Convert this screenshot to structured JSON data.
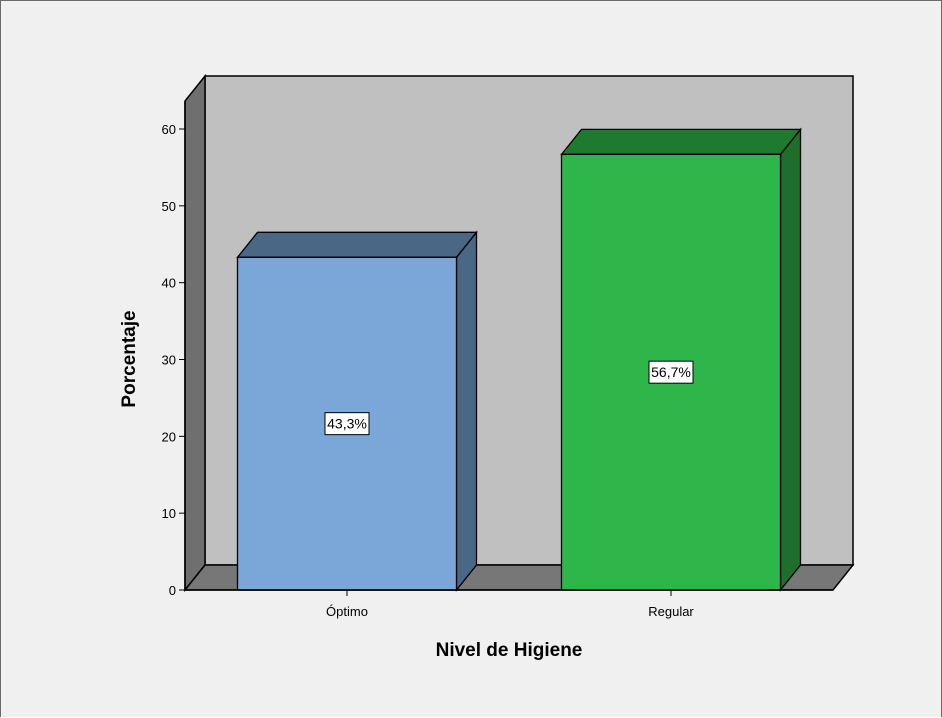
{
  "chart_data": {
    "type": "bar",
    "categories": [
      "Óptimo",
      "Regular"
    ],
    "values": [
      43.3,
      56.7
    ],
    "data_labels": [
      "43,3%",
      "56,7%"
    ],
    "xlabel": "Nivel de Higiene",
    "ylabel": "Porcentaje",
    "ylim": [
      0,
      60
    ],
    "yticks": [
      "0",
      "10",
      "20",
      "30",
      "40",
      "50",
      "60"
    ],
    "grid": false,
    "style": "3d",
    "colors": {
      "bars": [
        "#7aa7d8",
        "#2fb64a"
      ],
      "bar_tops": [
        "#4a6886",
        "#1e7a2e"
      ],
      "bar_sides": [
        "#4a6886",
        "#1f6e2b"
      ],
      "wall": "#c0c0c0",
      "floor": "#777777",
      "left_wall": "#6f6f6f",
      "background": "#f0f0f0"
    }
  }
}
